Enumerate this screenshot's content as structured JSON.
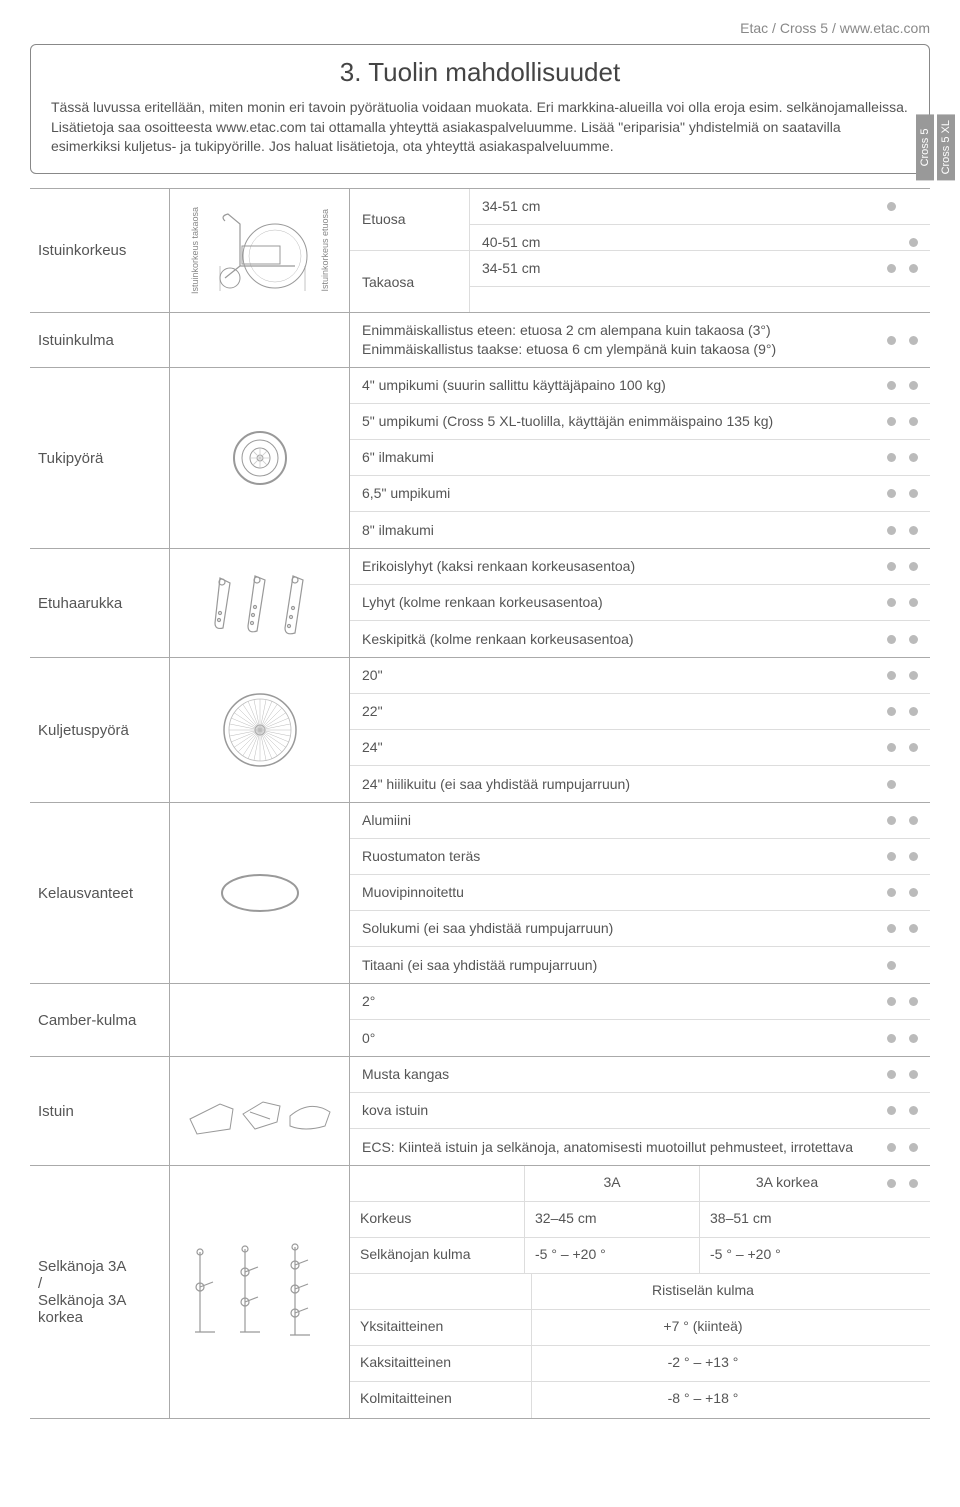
{
  "header": {
    "top_link": "Etac / Cross 5 / www.etac.com",
    "title": "3. Tuolin mahdollisuudet",
    "intro": "Tässä luvussa eritellään, miten monin eri tavoin pyörätuolia voidaan muokata. Eri markkina-alueilla voi olla eroja esim. selkänojamalleissa. Lisätietoja saa osoitteesta www.etac.com tai ottamalla yhteyttä asiakaspalveluumme. Lisää \"eriparisia\" yhdistelmiä on saatavilla esimerkiksi kuljetus- ja tukipyörille. Jos haluat lisätietoja, ota yhteyttä asiakaspalveluumme."
  },
  "models": [
    "Cross 5",
    "Cross 5 XL"
  ],
  "vlabel_rear": "Istuinkorkeus takaosa",
  "vlabel_front": "Istuinkorkeus etuosa",
  "rows": {
    "seat_height": {
      "label": "Istuinkorkeus",
      "front_label": "Etuosa",
      "rear_label": "Takaosa",
      "options": [
        {
          "text": "34-51 cm",
          "dots": [
            true,
            false
          ]
        },
        {
          "text": "40-51 cm",
          "dots": [
            false,
            true
          ]
        },
        {
          "text": "34-51 cm",
          "dots": [
            true,
            true
          ]
        },
        {
          "text": "",
          "dots": [
            false,
            false
          ]
        }
      ]
    },
    "seat_angle": {
      "label": "Istuinkulma",
      "text": "Enimmäiskallistus eteen: etuosa 2 cm alempana kuin takaosa (3°)\nEnimmäiskallistus taakse: etuosa 6 cm ylempänä kuin takaosa (9°)",
      "dots": [
        true,
        true
      ]
    },
    "castor": {
      "label": "Tukipyörä",
      "options": [
        {
          "text": "4\" umpikumi (suurin sallittu käyttäjäpaino 100 kg)",
          "dots": [
            true,
            true
          ]
        },
        {
          "text": "5\" umpikumi (Cross 5 XL-tuolilla, käyttäjän enimmäispaino 135 kg)",
          "dots": [
            true,
            true
          ]
        },
        {
          "text": "6\" ilmakumi",
          "dots": [
            true,
            true
          ]
        },
        {
          "text": "6,5\" umpikumi",
          "dots": [
            true,
            true
          ]
        },
        {
          "text": "8\" ilmakumi",
          "dots": [
            true,
            true
          ]
        }
      ]
    },
    "fork": {
      "label": "Etuhaarukka",
      "options": [
        {
          "text": "Erikoislyhyt (kaksi renkaan korkeusasentoa)",
          "dots": [
            true,
            true
          ]
        },
        {
          "text": "Lyhyt (kolme renkaan korkeusasentoa)",
          "dots": [
            true,
            true
          ]
        },
        {
          "text": "Keskipitkä (kolme renkaan korkeusasentoa)",
          "dots": [
            true,
            true
          ]
        }
      ]
    },
    "drive_wheel": {
      "label": "Kuljetuspyörä",
      "options": [
        {
          "text": "20\"",
          "dots": [
            true,
            true
          ]
        },
        {
          "text": "22\"",
          "dots": [
            true,
            true
          ]
        },
        {
          "text": "24\"",
          "dots": [
            true,
            true
          ]
        },
        {
          "text": "24\" hiilikuitu (ei saa yhdistää rumpujarruun)",
          "dots": [
            true,
            false
          ]
        }
      ]
    },
    "pushrim": {
      "label": "Kelausvanteet",
      "options": [
        {
          "text": "Alumiini",
          "dots": [
            true,
            true
          ]
        },
        {
          "text": "Ruostumaton teräs",
          "dots": [
            true,
            true
          ]
        },
        {
          "text": "Muovipinnoitettu",
          "dots": [
            true,
            true
          ]
        },
        {
          "text": "Solukumi (ei saa yhdistää rumpujarruun)",
          "dots": [
            true,
            true
          ]
        },
        {
          "text": "Titaani (ei saa yhdistää rumpujarruun)",
          "dots": [
            true,
            false
          ]
        }
      ]
    },
    "camber": {
      "label": "Camber-kulma",
      "options": [
        {
          "text": "2°",
          "dots": [
            true,
            true
          ]
        },
        {
          "text": "0°",
          "dots": [
            true,
            true
          ]
        }
      ]
    },
    "seat": {
      "label": "Istuin",
      "options": [
        {
          "text": "Musta kangas",
          "dots": [
            true,
            true
          ]
        },
        {
          "text": "kova istuin",
          "dots": [
            true,
            true
          ]
        },
        {
          "text": "ECS: Kiinteä istuin ja selkänoja, anatomisesti muotoillut pehmusteet, irrotettava",
          "dots": [
            true,
            true
          ]
        }
      ]
    },
    "backrest": {
      "label": "Selkänoja 3A\n/\nSelkänoja 3A korkea",
      "header": {
        "c1": "",
        "c2": "3A",
        "c3": "3A korkea",
        "dots": [
          true,
          true
        ]
      },
      "rows": [
        {
          "c1": "Korkeus",
          "c2": "32–45 cm",
          "c3": "38–51 cm"
        },
        {
          "c1": "Selkänojan kulma",
          "c2": "-5 ° – +20 °",
          "c3": "-5 ° – +20 °"
        },
        {
          "c1": "",
          "c23": "Ristiselän kulma"
        },
        {
          "c1": "Yksitaitteinen",
          "c23": "+7 ° (kiinteä)"
        },
        {
          "c1": "Kaksitaitteinen",
          "c23": "-2 ° – +13 °"
        },
        {
          "c1": "Kolmitaitteinen",
          "c23": "-8 ° – +18 °"
        }
      ]
    }
  },
  "colors": {
    "dot": "#bbbbbb",
    "border": "#aaaaaa",
    "text": "#555555"
  }
}
